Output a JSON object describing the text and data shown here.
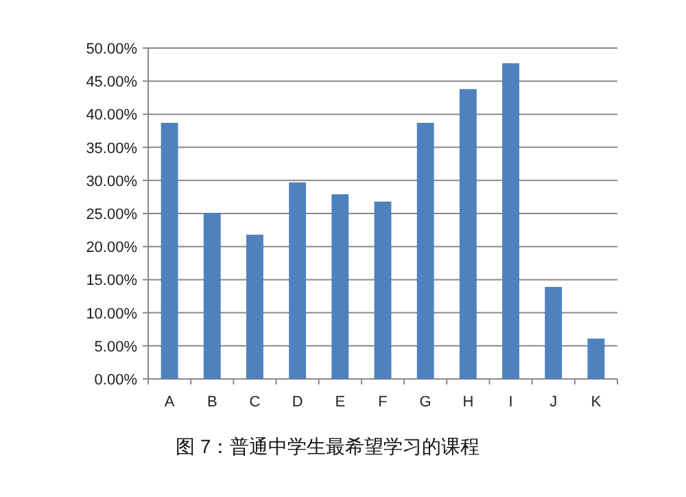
{
  "chart_data": {
    "type": "bar",
    "categories": [
      "A",
      "B",
      "C",
      "D",
      "E",
      "F",
      "G",
      "H",
      "I",
      "J",
      "K"
    ],
    "values": [
      38.7,
      25.1,
      21.8,
      29.7,
      27.9,
      26.8,
      38.7,
      43.8,
      47.7,
      13.9,
      6.1
    ],
    "color": "#4f81bd",
    "ylim": [
      0,
      50
    ],
    "yticks": [
      {
        "value": 0,
        "label": "0.00%"
      },
      {
        "value": 5,
        "label": "5.00%"
      },
      {
        "value": 10,
        "label": "10.00%"
      },
      {
        "value": 15,
        "label": "15.00%"
      },
      {
        "value": 20,
        "label": "20.00%"
      },
      {
        "value": 25,
        "label": "25.00%"
      },
      {
        "value": 30,
        "label": "30.00%"
      },
      {
        "value": 35,
        "label": "35.00%"
      },
      {
        "value": 40,
        "label": "40.00%"
      },
      {
        "value": 45,
        "label": "45.00%"
      },
      {
        "value": 50,
        "label": "50.00%"
      }
    ],
    "grid": true,
    "annotations": [
      "图 7：普通中学生最希望学习的课程"
    ]
  }
}
